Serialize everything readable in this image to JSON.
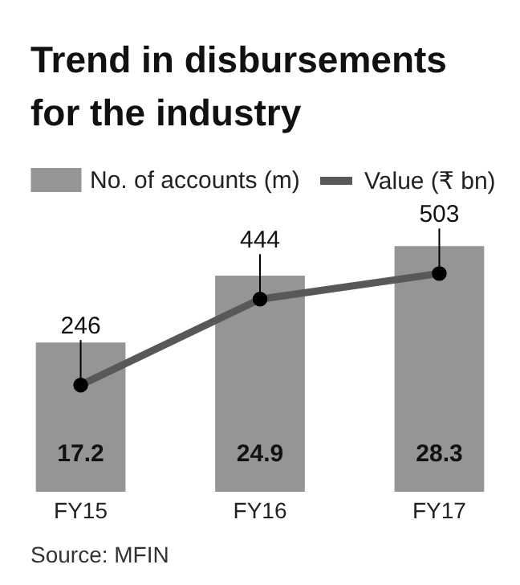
{
  "chart_data": {
    "type": "bar",
    "title": "Trend in disbursements for the industry",
    "categories": [
      "FY15",
      "FY16",
      "FY17"
    ],
    "series": [
      {
        "name": "No. of accounts (m)",
        "color": "#959595",
        "values": [
          17.2,
          24.9,
          28.3
        ]
      },
      {
        "name": "Value (₹ bn)",
        "type": "line",
        "axis": "y2",
        "color": "#585858",
        "values": [
          246,
          444,
          503
        ]
      }
    ],
    "data_labels": true,
    "legend": "top left",
    "tick_labels": "x",
    "marker": "circle",
    "annotations": [
      "Source: MFIN"
    ]
  }
}
